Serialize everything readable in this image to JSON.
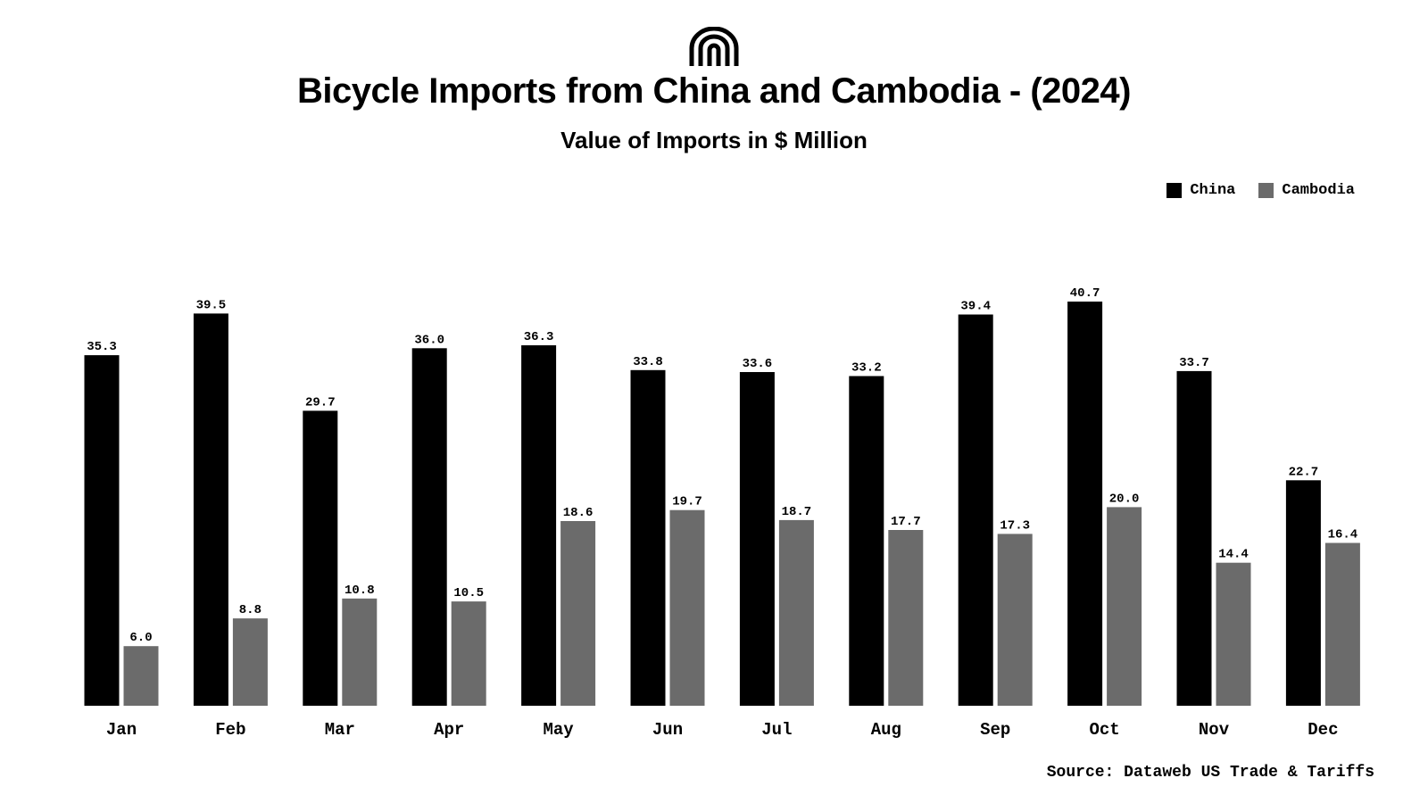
{
  "header": {
    "logo_icon": "arches-logo-icon",
    "title": "Bicycle Imports from China and Cambodia - (2024)",
    "subtitle": "Value of Imports in $ Million"
  },
  "legend": {
    "items": [
      {
        "label": "China",
        "color": "#000000"
      },
      {
        "label": "Cambodia",
        "color": "#6b6b6b"
      }
    ]
  },
  "footer": {
    "source": "Source: Dataweb US Trade & Tariffs"
  },
  "chart_data": {
    "type": "bar",
    "title": "Bicycle Imports from China and Cambodia - (2024)",
    "subtitle": "Value of Imports in $ Million",
    "xlabel": "",
    "ylabel": "",
    "categories": [
      "Jan",
      "Feb",
      "Mar",
      "Apr",
      "May",
      "Jun",
      "Jul",
      "Aug",
      "Sep",
      "Oct",
      "Nov",
      "Dec"
    ],
    "series": [
      {
        "name": "China",
        "color": "#000000",
        "values": [
          35.3,
          39.5,
          29.7,
          36.0,
          36.3,
          33.8,
          33.6,
          33.2,
          39.4,
          40.7,
          33.7,
          22.7
        ]
      },
      {
        "name": "Cambodia",
        "color": "#6b6b6b",
        "values": [
          6.0,
          8.8,
          10.8,
          10.5,
          18.6,
          19.7,
          18.7,
          17.7,
          17.3,
          20.0,
          14.4,
          16.4
        ]
      }
    ],
    "ylim": [
      0,
      40.7
    ],
    "grid": false,
    "legend_position": "top-right",
    "value_labels": true
  }
}
